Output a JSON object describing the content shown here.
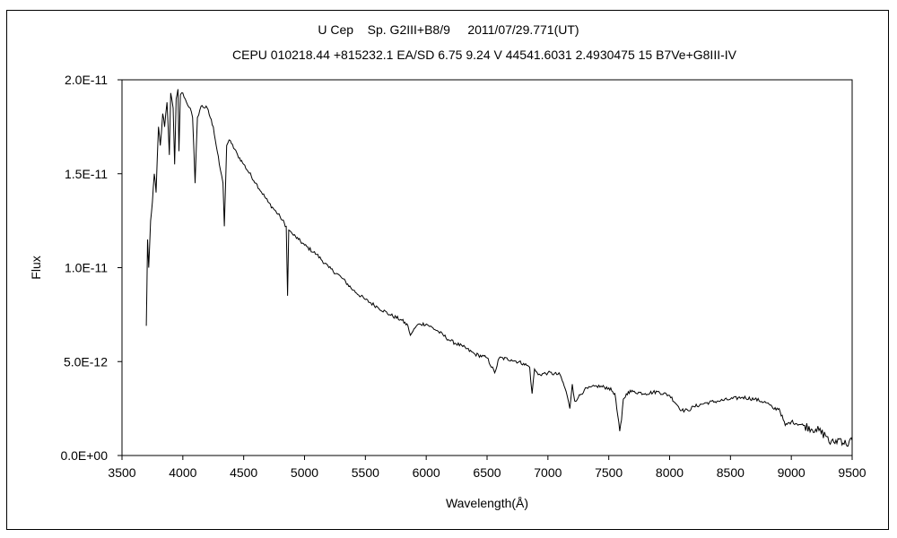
{
  "chart_data": {
    "type": "line",
    "title": "U Cep    Sp. G2III+B8/9     2011/07/29.771(UT)",
    "subtitle": "CEPU 010218.44 +815232.1 EA/SD 6.75 9.24 V 44541.6031 2.4930475 15 B7Ve+G8III-IV",
    "xlabel": "Wavelength(Å)",
    "ylabel": "Flux",
    "xlim": [
      3500,
      9500
    ],
    "ylim": [
      0,
      2e-11
    ],
    "x_ticks": [
      3500,
      4000,
      4500,
      5000,
      5500,
      6000,
      6500,
      7000,
      7500,
      8000,
      8500,
      9000,
      9500
    ],
    "x_tick_labels": [
      "3500",
      "4000",
      "4500",
      "5000",
      "5500",
      "6000",
      "6500",
      "7000",
      "7500",
      "8000",
      "8500",
      "9000",
      "9500"
    ],
    "y_ticks": [
      0,
      5e-12,
      1e-11,
      1.5e-11,
      2e-11
    ],
    "y_tick_labels": [
      "0.0E+00",
      "5.0E-12",
      "1.0E-11",
      "1.5E-11",
      "2.0E-11"
    ],
    "grid": false,
    "legend": "none",
    "line_color": "#000000",
    "series": [
      {
        "x": [
          3700,
          3705,
          3710,
          3720,
          3735,
          3750,
          3765,
          3780,
          3800,
          3815,
          3835,
          3850,
          3870,
          3889,
          3900,
          3920,
          3933,
          3945,
          3960,
          3968,
          3980,
          4000,
          4030,
          4060,
          4080,
          4101,
          4120,
          4150,
          4200,
          4250,
          4300,
          4330,
          4341,
          4360,
          4380,
          4400,
          4450,
          4500,
          4600,
          4700,
          4800,
          4850,
          4861,
          4870,
          4900,
          4950,
          5000,
          5100,
          5200,
          5300,
          5400,
          5500,
          5600,
          5700,
          5800,
          5850,
          5870,
          5890,
          5920,
          5950,
          6000,
          6100,
          6200,
          6300,
          6400,
          6500,
          6563,
          6600,
          6700,
          6800,
          6850,
          6870,
          6890,
          6920,
          7000,
          7100,
          7150,
          7180,
          7200,
          7220,
          7250,
          7300,
          7400,
          7500,
          7550,
          7590,
          7605,
          7620,
          7660,
          7700,
          7800,
          7900,
          8000,
          8100,
          8150,
          8200,
          8300,
          8400,
          8500,
          8600,
          8700,
          8800,
          8850,
          8900,
          8950,
          9000,
          9100,
          9200,
          9300,
          9320,
          9350,
          9400,
          9450,
          9500
        ],
        "y": [
          6.9e-12,
          9e-12,
          1.15e-11,
          1e-11,
          1.25e-11,
          1.35e-11,
          1.5e-11,
          1.4e-11,
          1.75e-11,
          1.65e-11,
          1.82e-11,
          1.75e-11,
          1.88e-11,
          1.6e-11,
          1.93e-11,
          1.85e-11,
          1.55e-11,
          1.9e-11,
          1.95e-11,
          1.62e-11,
          1.92e-11,
          1.93e-11,
          1.88e-11,
          1.85e-11,
          1.8e-11,
          1.45e-11,
          1.8e-11,
          1.86e-11,
          1.85e-11,
          1.75e-11,
          1.55e-11,
          1.45e-11,
          1.22e-11,
          1.65e-11,
          1.68e-11,
          1.66e-11,
          1.6e-11,
          1.55e-11,
          1.45e-11,
          1.35e-11,
          1.27e-11,
          1.22e-11,
          8.5e-12,
          1.2e-11,
          1.18e-11,
          1.15e-11,
          1.12e-11,
          1.07e-11,
          1e-11,
          9.5e-12,
          8.8e-12,
          8.3e-12,
          7.9e-12,
          7.5e-12,
          7.2e-12,
          6.9e-12,
          6.4e-12,
          6.6e-12,
          6.9e-12,
          7e-12,
          7e-12,
          6.6e-12,
          6.1e-12,
          5.8e-12,
          5.4e-12,
          5.2e-12,
          4.4e-12,
          5.2e-12,
          5.1e-12,
          4.9e-12,
          4.7e-12,
          3.3e-12,
          4.6e-12,
          4.3e-12,
          4.4e-12,
          4.3e-12,
          3.4e-12,
          2.5e-12,
          3.8e-12,
          2.9e-12,
          3.1e-12,
          3.5e-12,
          3.7e-12,
          3.6e-12,
          3.3e-12,
          1.3e-12,
          1.9e-12,
          3e-12,
          3.4e-12,
          3.4e-12,
          3.3e-12,
          3.4e-12,
          3.2e-12,
          2.4e-12,
          2.4e-12,
          2.6e-12,
          2.8e-12,
          2.9e-12,
          3e-12,
          3.1e-12,
          3e-12,
          2.8e-12,
          2.5e-12,
          2.5e-12,
          1.6e-12,
          1.8e-12,
          1.6e-12,
          1.4e-12,
          1e-12,
          6e-13,
          7e-13,
          9e-13,
          6e-13,
          8e-13
        ]
      }
    ]
  }
}
